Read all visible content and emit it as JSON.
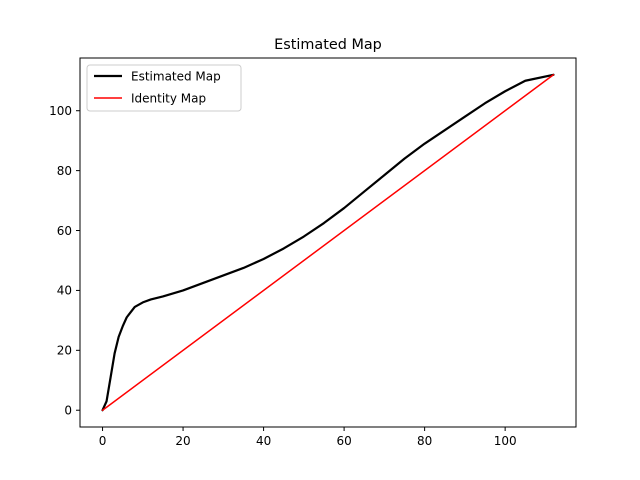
{
  "chart_data": {
    "type": "line",
    "title": "Estimated Map",
    "xlabel": "",
    "ylabel": "",
    "xlim": [
      -5.6,
      117.6
    ],
    "ylim": [
      -5.6,
      117.6
    ],
    "xticks": [
      0,
      20,
      40,
      60,
      80,
      100
    ],
    "yticks": [
      0,
      20,
      40,
      60,
      80,
      100
    ],
    "grid": false,
    "legend_position": "top-left",
    "series": [
      {
        "name": "Estimated Map",
        "color": "#000000",
        "x": [
          0,
          1,
          2,
          3,
          4,
          5,
          6,
          8,
          10,
          12,
          15,
          20,
          25,
          30,
          35,
          40,
          45,
          50,
          55,
          60,
          65,
          70,
          75,
          80,
          85,
          90,
          95,
          100,
          105,
          112
        ],
        "y": [
          0,
          3,
          11,
          19,
          24.5,
          28,
          31,
          34.5,
          36,
          37,
          38,
          40,
          42.5,
          45,
          47.5,
          50.5,
          54,
          58,
          62.5,
          67.5,
          73,
          78.5,
          84,
          89,
          93.5,
          98,
          102.5,
          106.5,
          110,
          112
        ]
      },
      {
        "name": "Identity Map",
        "color": "#ff0000",
        "x": [
          0,
          112
        ],
        "y": [
          0,
          112
        ]
      }
    ]
  }
}
